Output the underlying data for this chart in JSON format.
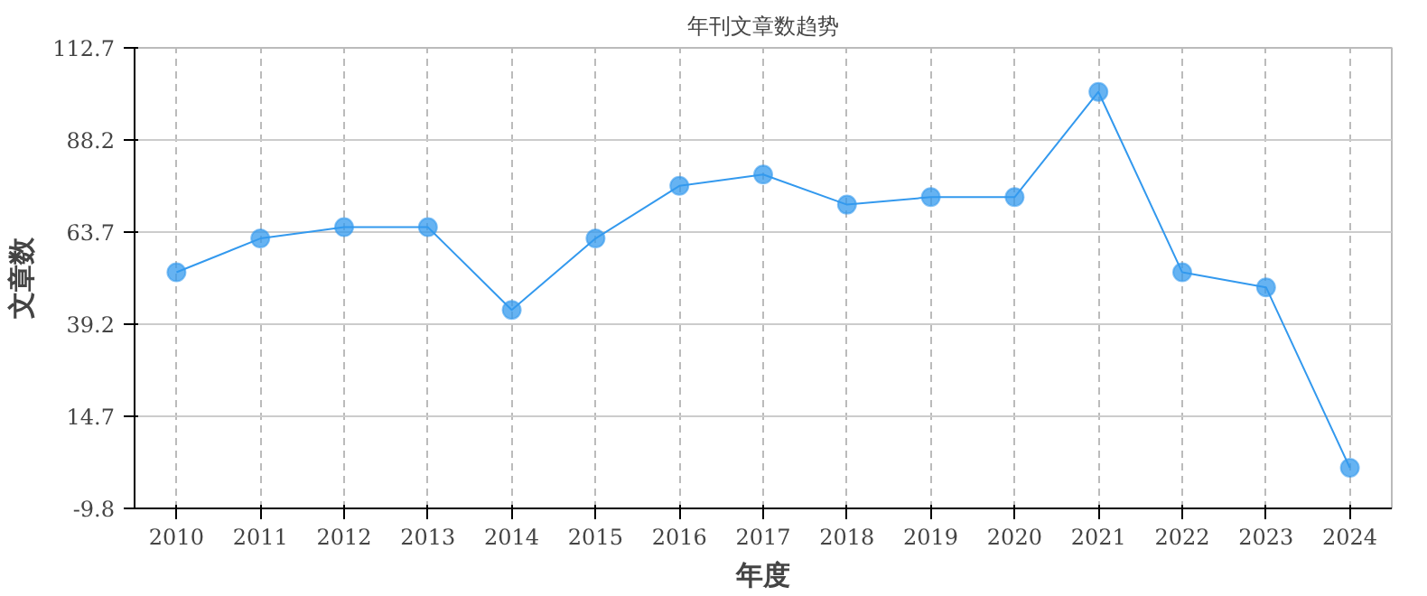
{
  "chart_data": {
    "type": "line",
    "title": "年刊文章数趋势",
    "xlabel": "年度",
    "ylabel": "文章数",
    "categories": [
      "2010",
      "2011",
      "2012",
      "2013",
      "2014",
      "2015",
      "2016",
      "2017",
      "2018",
      "2019",
      "2020",
      "2021",
      "2022",
      "2023",
      "2024"
    ],
    "series": [
      {
        "color": "#3399ee",
        "values": [
          53,
          62,
          65,
          65,
          43,
          62,
          76,
          79,
          71,
          73,
          73,
          101,
          53,
          49,
          1
        ]
      }
    ],
    "ylim": [
      -9.8,
      112.7
    ],
    "yticks": [
      -9.8,
      14.7,
      39.2,
      63.7,
      88.2,
      112.7
    ],
    "grid": true,
    "marker": "circle",
    "line_style": "solid"
  }
}
